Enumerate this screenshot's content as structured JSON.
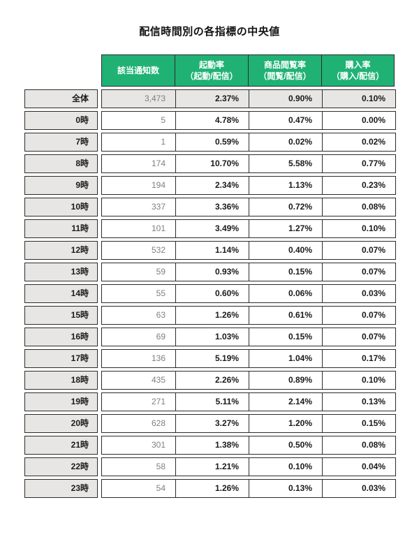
{
  "title": "配信時間別の各指標の中央値",
  "colors": {
    "header_bg": "#1fb274",
    "header_text": "#ffffff",
    "label_cell_bg": "#e7e6e4",
    "highlight_row_bg": "#e7e6e4",
    "border": "#2b2b2b",
    "count_text": "#7f7f7f",
    "value_text": "#1a1a1a"
  },
  "chart_data": {
    "type": "table",
    "title": "配信時間別の各指標の中央値",
    "columns": [
      {
        "label": "該当通知数",
        "sub": ""
      },
      {
        "label": "起動率",
        "sub": "（起動/配信）"
      },
      {
        "label": "商品閲覧率",
        "sub": "（閲覧/配信）"
      },
      {
        "label": "購入率",
        "sub": "（購入/配信）"
      }
    ],
    "rows": [
      {
        "label": "全体",
        "count": "3,473",
        "launch_rate": "2.37%",
        "view_rate": "0.90%",
        "purchase_rate": "0.10%",
        "highlight": true
      },
      {
        "label": "0時",
        "count": "5",
        "launch_rate": "4.78%",
        "view_rate": "0.47%",
        "purchase_rate": "0.00%"
      },
      {
        "label": "7時",
        "count": "1",
        "launch_rate": "0.59%",
        "view_rate": "0.02%",
        "purchase_rate": "0.02%"
      },
      {
        "label": "8時",
        "count": "174",
        "launch_rate": "10.70%",
        "view_rate": "5.58%",
        "purchase_rate": "0.77%"
      },
      {
        "label": "9時",
        "count": "194",
        "launch_rate": "2.34%",
        "view_rate": "1.13%",
        "purchase_rate": "0.23%"
      },
      {
        "label": "10時",
        "count": "337",
        "launch_rate": "3.36%",
        "view_rate": "0.72%",
        "purchase_rate": "0.08%"
      },
      {
        "label": "11時",
        "count": "101",
        "launch_rate": "3.49%",
        "view_rate": "1.27%",
        "purchase_rate": "0.10%"
      },
      {
        "label": "12時",
        "count": "532",
        "launch_rate": "1.14%",
        "view_rate": "0.40%",
        "purchase_rate": "0.07%"
      },
      {
        "label": "13時",
        "count": "59",
        "launch_rate": "0.93%",
        "view_rate": "0.15%",
        "purchase_rate": "0.07%"
      },
      {
        "label": "14時",
        "count": "55",
        "launch_rate": "0.60%",
        "view_rate": "0.06%",
        "purchase_rate": "0.03%"
      },
      {
        "label": "15時",
        "count": "63",
        "launch_rate": "1.26%",
        "view_rate": "0.61%",
        "purchase_rate": "0.07%"
      },
      {
        "label": "16時",
        "count": "69",
        "launch_rate": "1.03%",
        "view_rate": "0.15%",
        "purchase_rate": "0.07%"
      },
      {
        "label": "17時",
        "count": "136",
        "launch_rate": "5.19%",
        "view_rate": "1.04%",
        "purchase_rate": "0.17%"
      },
      {
        "label": "18時",
        "count": "435",
        "launch_rate": "2.26%",
        "view_rate": "0.89%",
        "purchase_rate": "0.10%"
      },
      {
        "label": "19時",
        "count": "271",
        "launch_rate": "5.11%",
        "view_rate": "2.14%",
        "purchase_rate": "0.13%"
      },
      {
        "label": "20時",
        "count": "628",
        "launch_rate": "3.27%",
        "view_rate": "1.20%",
        "purchase_rate": "0.15%"
      },
      {
        "label": "21時",
        "count": "301",
        "launch_rate": "1.38%",
        "view_rate": "0.50%",
        "purchase_rate": "0.08%"
      },
      {
        "label": "22時",
        "count": "58",
        "launch_rate": "1.21%",
        "view_rate": "0.10%",
        "purchase_rate": "0.04%"
      },
      {
        "label": "23時",
        "count": "54",
        "launch_rate": "1.26%",
        "view_rate": "0.13%",
        "purchase_rate": "0.03%"
      }
    ]
  }
}
